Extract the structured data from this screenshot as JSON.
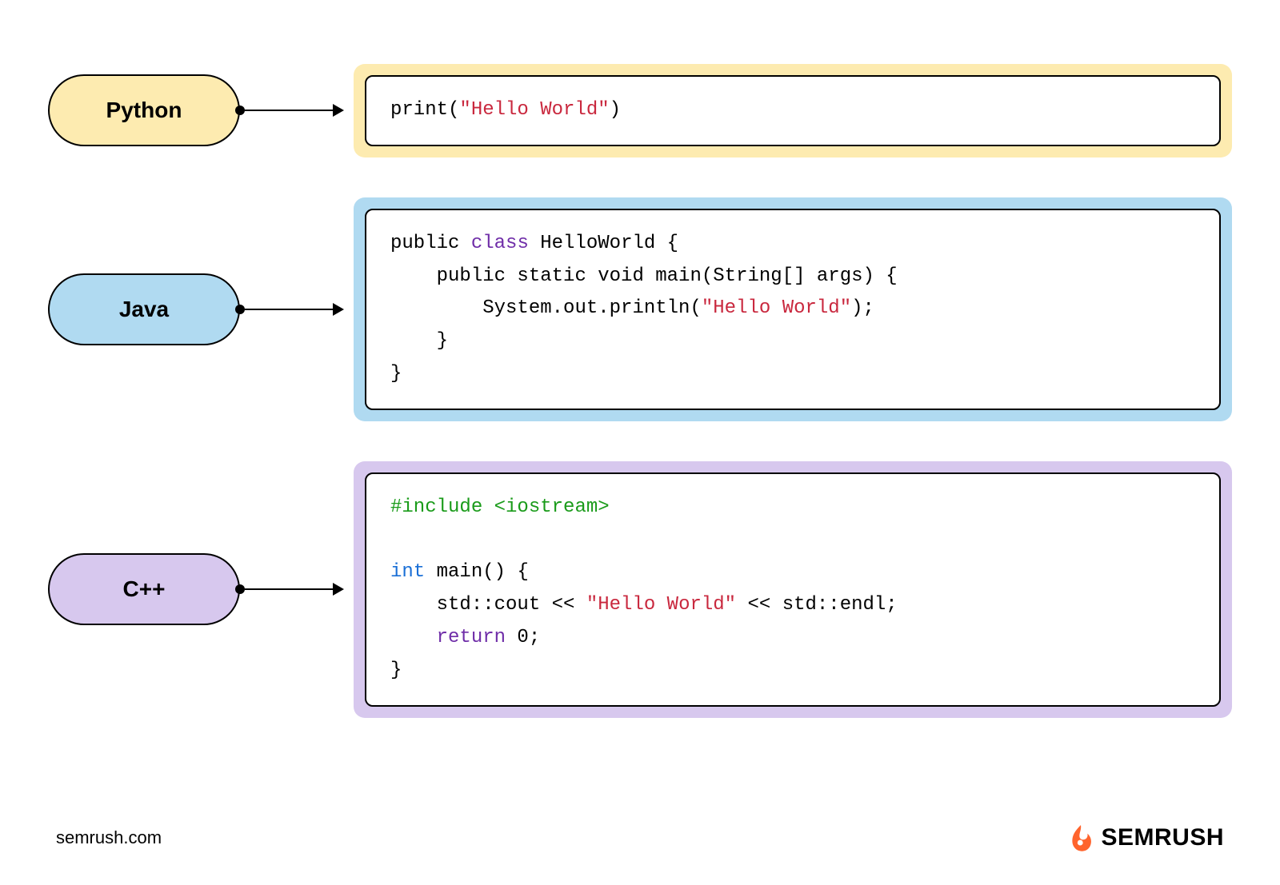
{
  "colors": {
    "yellow": "#fdebb0",
    "blue": "#b0daf1",
    "purple": "#d7c8ee",
    "codeText": "#000000",
    "codeString": "#c9283e",
    "codeKeyword": "#6f2da8",
    "codePreproc": "#1a9b1a",
    "codeType": "#1a6fd6",
    "logoOrange": "#ff642d"
  },
  "layout": {
    "labelFontSize": 28,
    "codeFontSize": 24,
    "pillWidth": 240,
    "pillHeight": 90,
    "connectorWidth": 110
  },
  "languages": [
    {
      "id": "python",
      "label": "Python",
      "color": "yellow",
      "code": [
        [
          {
            "t": "print("
          },
          {
            "t": "\"Hello World\"",
            "c": "str"
          },
          {
            "t": ")"
          }
        ]
      ]
    },
    {
      "id": "java",
      "label": "Java",
      "color": "blue",
      "code": [
        [
          {
            "t": "public "
          },
          {
            "t": "class",
            "c": "kw"
          },
          {
            "t": " HelloWorld {"
          }
        ],
        [
          {
            "t": "    public static void main(String[] args) {"
          }
        ],
        [
          {
            "t": "        System.out.println("
          },
          {
            "t": "\"Hello World\"",
            "c": "str"
          },
          {
            "t": ");"
          }
        ],
        [
          {
            "t": "    }"
          }
        ],
        [
          {
            "t": "}"
          }
        ]
      ]
    },
    {
      "id": "cpp",
      "label": "C++",
      "color": "purple",
      "code": [
        [
          {
            "t": "#include <iostream>",
            "c": "pp"
          }
        ],
        [
          {
            "t": ""
          }
        ],
        [
          {
            "t": "int",
            "c": "type"
          },
          {
            "t": " main() {"
          }
        ],
        [
          {
            "t": "    std::cout << "
          },
          {
            "t": "\"Hello World\"",
            "c": "str"
          },
          {
            "t": " << std::endl;"
          }
        ],
        [
          {
            "t": "    "
          },
          {
            "t": "return",
            "c": "kw"
          },
          {
            "t": " 0;"
          }
        ],
        [
          {
            "t": "}"
          }
        ]
      ]
    }
  ],
  "footer": {
    "site": "semrush.com",
    "brand": "SEMRUSH"
  }
}
